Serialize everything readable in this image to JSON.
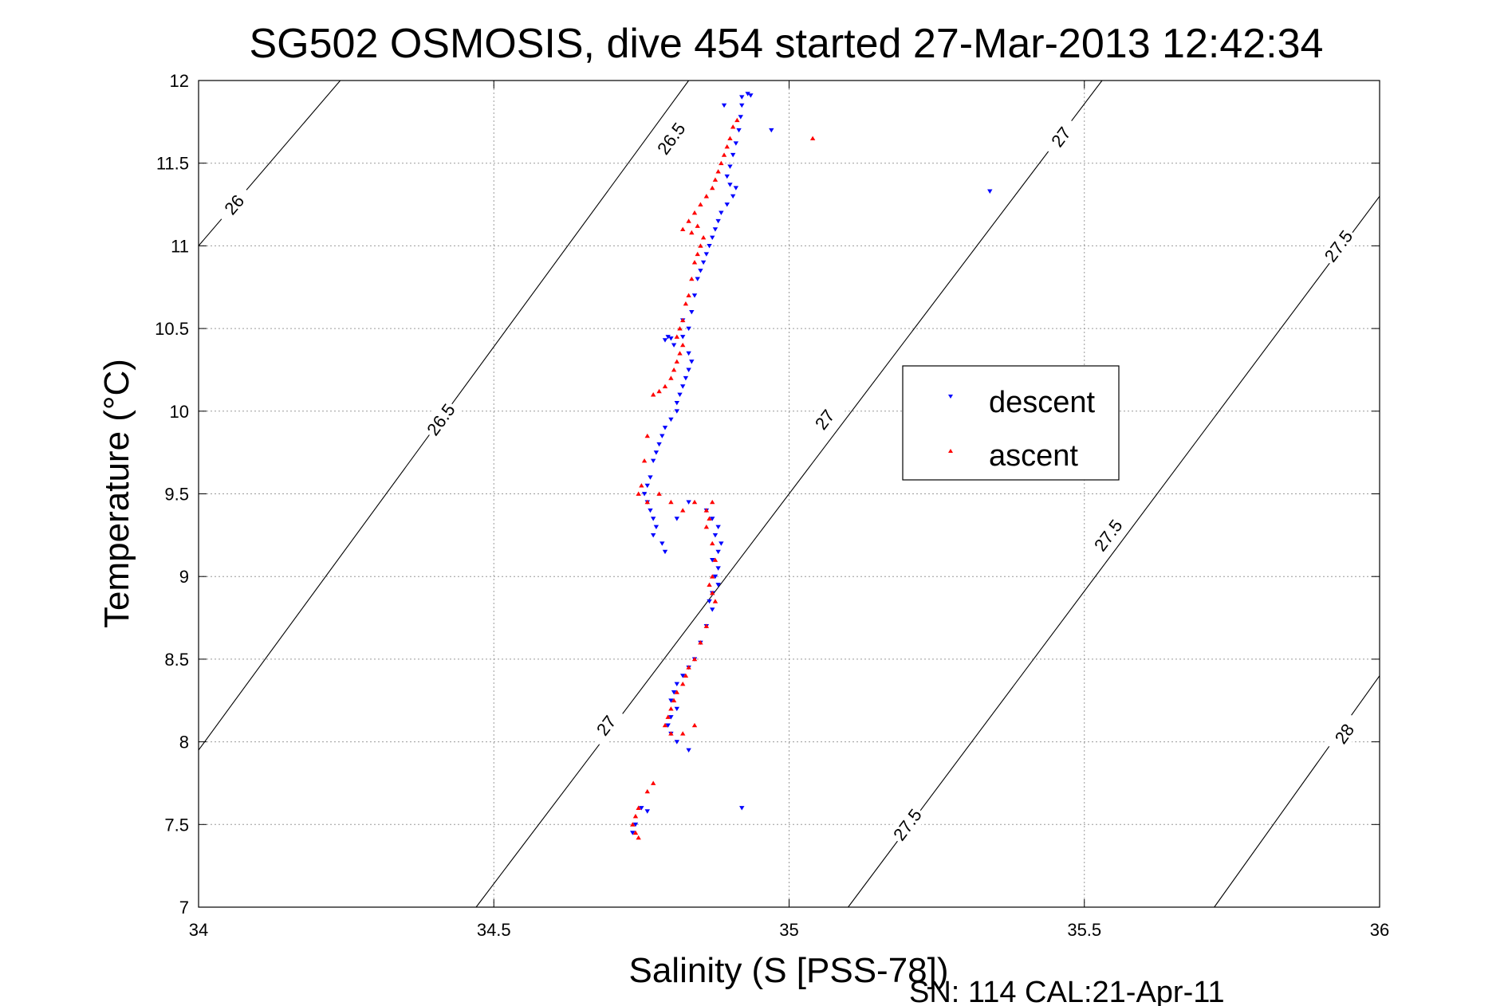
{
  "chart_data": {
    "type": "scatter",
    "title": "SG502 OSMOSIS, dive 454 started 27-Mar-2013 12:42:34",
    "xlabel": "Salinity (S [PSS-78])",
    "ylabel": "Temperature (°C)",
    "footer": "SN: 114  CAL:21-Apr-11",
    "xlim": [
      34,
      36
    ],
    "ylim": [
      7,
      12
    ],
    "xticks": [
      34,
      34.5,
      35,
      35.5,
      36
    ],
    "xtick_labels": [
      "34",
      "34.5",
      "35",
      "35.5",
      "36"
    ],
    "yticks": [
      7,
      7.5,
      8,
      8.5,
      9,
      9.5,
      10,
      10.5,
      11,
      11.5,
      12
    ],
    "ytick_labels": [
      "7",
      "7.5",
      "8",
      "8.5",
      "9",
      "9.5",
      "10",
      "10.5",
      "11",
      "11.5",
      "12"
    ],
    "grid": true,
    "legend_position": "center-right",
    "density_contours": [
      {
        "value": 26.0,
        "x": [
          34.0,
          34.24
        ],
        "y": [
          11.0,
          12.0
        ],
        "labels": [
          {
            "text": "26",
            "x": 34.06,
            "y": 11.25
          }
        ]
      },
      {
        "value": 26.5,
        "x": [
          34.0,
          34.83
        ],
        "y": [
          7.95,
          12.0
        ],
        "labels": [
          {
            "text": "26.5",
            "x": 34.41,
            "y": 9.95
          },
          {
            "text": "26.5",
            "x": 34.8,
            "y": 11.65
          }
        ]
      },
      {
        "value": 27.0,
        "x": [
          34.47,
          35.53
        ],
        "y": [
          7.0,
          12.0
        ],
        "labels": [
          {
            "text": "27",
            "x": 34.69,
            "y": 8.1
          },
          {
            "text": "27",
            "x": 35.06,
            "y": 9.95
          },
          {
            "text": "27",
            "x": 35.46,
            "y": 11.66
          }
        ]
      },
      {
        "value": 27.5,
        "x": [
          35.1,
          36.0
        ],
        "y": [
          7.0,
          11.3
        ],
        "labels": [
          {
            "text": "27.5",
            "x": 35.2,
            "y": 7.5
          },
          {
            "text": "27.5",
            "x": 35.54,
            "y": 9.25
          },
          {
            "text": "27.5",
            "x": 35.93,
            "y": 11.0
          }
        ]
      },
      {
        "value": 28.0,
        "x": [
          35.72,
          36.0
        ],
        "y": [
          7.0,
          8.4
        ],
        "labels": [
          {
            "text": "28",
            "x": 35.94,
            "y": 8.05
          }
        ]
      }
    ],
    "series": [
      {
        "name": "descent",
        "color": "#0000ff",
        "marker": "triangle-down",
        "points": [
          [
            34.93,
            11.92
          ],
          [
            34.92,
            11.9
          ],
          [
            34.935,
            11.91
          ],
          [
            34.92,
            11.85
          ],
          [
            34.918,
            11.78
          ],
          [
            34.915,
            11.7
          ],
          [
            34.91,
            11.62
          ],
          [
            34.905,
            11.55
          ],
          [
            34.9,
            11.48
          ],
          [
            34.895,
            11.42
          ],
          [
            34.9,
            11.37
          ],
          [
            34.91,
            11.35
          ],
          [
            34.905,
            11.3
          ],
          [
            34.895,
            11.25
          ],
          [
            34.885,
            11.2
          ],
          [
            34.88,
            11.15
          ],
          [
            34.875,
            11.1
          ],
          [
            34.87,
            11.05
          ],
          [
            34.865,
            11.0
          ],
          [
            34.86,
            10.95
          ],
          [
            34.855,
            10.9
          ],
          [
            34.85,
            10.85
          ],
          [
            34.845,
            10.8
          ],
          [
            34.84,
            10.7
          ],
          [
            34.835,
            10.6
          ],
          [
            34.82,
            10.55
          ],
          [
            34.83,
            10.5
          ],
          [
            34.82,
            10.45
          ],
          [
            34.8,
            10.44
          ],
          [
            34.79,
            10.43
          ],
          [
            34.795,
            10.45
          ],
          [
            34.805,
            10.4
          ],
          [
            34.83,
            10.35
          ],
          [
            34.835,
            10.3
          ],
          [
            34.83,
            10.25
          ],
          [
            34.825,
            10.2
          ],
          [
            34.82,
            10.15
          ],
          [
            34.815,
            10.1
          ],
          [
            34.81,
            10.05
          ],
          [
            34.81,
            10.0
          ],
          [
            34.8,
            9.95
          ],
          [
            34.79,
            9.9
          ],
          [
            34.785,
            9.85
          ],
          [
            34.78,
            9.8
          ],
          [
            34.775,
            9.75
          ],
          [
            34.77,
            9.7
          ],
          [
            34.765,
            9.6
          ],
          [
            34.76,
            9.55
          ],
          [
            34.755,
            9.5
          ],
          [
            34.76,
            9.45
          ],
          [
            34.765,
            9.4
          ],
          [
            34.77,
            9.35
          ],
          [
            34.775,
            9.3
          ],
          [
            34.77,
            9.25
          ],
          [
            34.785,
            9.2
          ],
          [
            34.79,
            9.15
          ],
          [
            34.81,
            9.35
          ],
          [
            34.83,
            9.45
          ],
          [
            34.86,
            9.4
          ],
          [
            34.87,
            9.35
          ],
          [
            34.88,
            9.3
          ],
          [
            34.875,
            9.25
          ],
          [
            34.885,
            9.2
          ],
          [
            34.88,
            9.15
          ],
          [
            34.87,
            9.1
          ],
          [
            34.88,
            9.05
          ],
          [
            34.875,
            9.0
          ],
          [
            34.88,
            8.95
          ],
          [
            34.87,
            8.9
          ],
          [
            34.865,
            8.85
          ],
          [
            34.87,
            8.8
          ],
          [
            34.86,
            8.7
          ],
          [
            34.85,
            8.6
          ],
          [
            34.84,
            8.5
          ],
          [
            34.83,
            8.45
          ],
          [
            34.82,
            8.4
          ],
          [
            34.81,
            8.35
          ],
          [
            34.805,
            8.3
          ],
          [
            34.8,
            8.25
          ],
          [
            34.81,
            8.2
          ],
          [
            34.8,
            8.15
          ],
          [
            34.795,
            8.1
          ],
          [
            34.8,
            8.05
          ],
          [
            34.81,
            8.0
          ],
          [
            34.83,
            7.95
          ],
          [
            34.75,
            7.6
          ],
          [
            34.76,
            7.58
          ],
          [
            34.74,
            7.5
          ],
          [
            34.735,
            7.45
          ],
          [
            34.92,
            7.6
          ],
          [
            34.97,
            11.7
          ],
          [
            35.34,
            11.33
          ],
          [
            34.89,
            11.85
          ]
        ]
      },
      {
        "name": "ascent",
        "color": "#ff0000",
        "marker": "triangle-up",
        "points": [
          [
            34.912,
            11.76
          ],
          [
            34.905,
            11.72
          ],
          [
            34.9,
            11.65
          ],
          [
            34.895,
            11.6
          ],
          [
            34.89,
            11.55
          ],
          [
            34.885,
            11.5
          ],
          [
            34.88,
            11.45
          ],
          [
            34.875,
            11.4
          ],
          [
            34.87,
            11.35
          ],
          [
            34.86,
            11.3
          ],
          [
            34.85,
            11.25
          ],
          [
            34.84,
            11.2
          ],
          [
            34.83,
            11.15
          ],
          [
            34.82,
            11.1
          ],
          [
            34.835,
            11.08
          ],
          [
            34.845,
            11.12
          ],
          [
            34.855,
            11.05
          ],
          [
            34.85,
            11.0
          ],
          [
            34.845,
            10.95
          ],
          [
            34.84,
            10.9
          ],
          [
            34.835,
            10.8
          ],
          [
            34.83,
            10.7
          ],
          [
            34.825,
            10.65
          ],
          [
            34.82,
            10.55
          ],
          [
            34.815,
            10.5
          ],
          [
            34.81,
            10.45
          ],
          [
            34.82,
            10.4
          ],
          [
            34.815,
            10.35
          ],
          [
            34.81,
            10.3
          ],
          [
            34.805,
            10.25
          ],
          [
            34.8,
            10.2
          ],
          [
            34.79,
            10.15
          ],
          [
            34.78,
            10.12
          ],
          [
            34.77,
            10.1
          ],
          [
            34.76,
            9.85
          ],
          [
            34.755,
            9.7
          ],
          [
            34.75,
            9.55
          ],
          [
            34.745,
            9.5
          ],
          [
            34.76,
            9.45
          ],
          [
            34.78,
            9.5
          ],
          [
            34.8,
            9.45
          ],
          [
            34.82,
            9.4
          ],
          [
            34.84,
            9.45
          ],
          [
            34.86,
            9.4
          ],
          [
            34.87,
            9.45
          ],
          [
            34.865,
            9.35
          ],
          [
            34.86,
            9.3
          ],
          [
            34.87,
            9.2
          ],
          [
            34.875,
            9.1
          ],
          [
            34.87,
            9.0
          ],
          [
            34.865,
            8.95
          ],
          [
            34.87,
            8.9
          ],
          [
            34.875,
            8.85
          ],
          [
            34.86,
            8.7
          ],
          [
            34.85,
            8.6
          ],
          [
            34.84,
            8.5
          ],
          [
            34.83,
            8.45
          ],
          [
            34.825,
            8.4
          ],
          [
            34.82,
            8.35
          ],
          [
            34.81,
            8.3
          ],
          [
            34.805,
            8.25
          ],
          [
            34.8,
            8.2
          ],
          [
            34.795,
            8.15
          ],
          [
            34.79,
            8.1
          ],
          [
            34.8,
            8.05
          ],
          [
            34.82,
            8.05
          ],
          [
            34.84,
            8.1
          ],
          [
            34.77,
            7.75
          ],
          [
            34.76,
            7.7
          ],
          [
            34.745,
            7.6
          ],
          [
            34.74,
            7.55
          ],
          [
            34.735,
            7.5
          ],
          [
            34.74,
            7.45
          ],
          [
            34.745,
            7.42
          ],
          [
            35.04,
            11.65
          ]
        ]
      }
    ]
  }
}
